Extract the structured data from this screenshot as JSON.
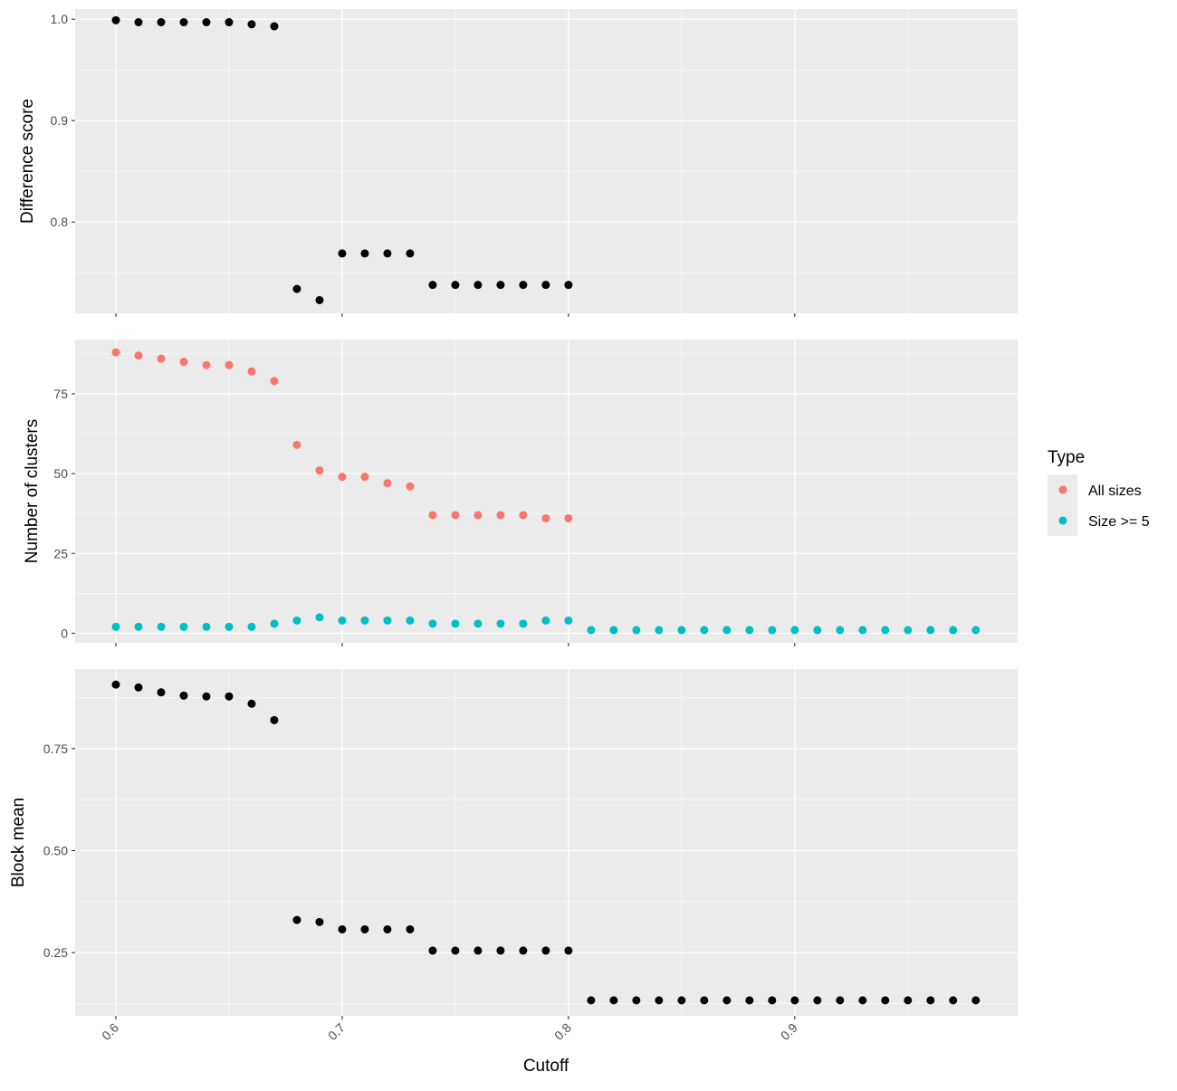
{
  "chart_data": [
    {
      "type": "scatter",
      "ylabel": "Difference score",
      "ylim": [
        0.71,
        1.01
      ],
      "yticks": [
        "0.8",
        "0.9",
        "1.0"
      ],
      "ytick_values": [
        0.8,
        0.9,
        1.0
      ],
      "x": [
        0.6,
        0.61,
        0.62,
        0.63,
        0.64,
        0.65,
        0.66,
        0.67,
        0.68,
        0.69,
        0.7,
        0.71,
        0.72,
        0.73,
        0.74,
        0.75,
        0.76,
        0.77,
        0.78,
        0.79,
        0.8
      ],
      "series": [
        {
          "color": "#000000",
          "values": [
            0.999,
            0.997,
            0.997,
            0.997,
            0.997,
            0.997,
            0.995,
            0.993,
            0.734,
            0.723,
            0.769,
            0.769,
            0.769,
            0.769,
            0.738,
            0.738,
            0.738,
            0.738,
            0.738,
            0.738,
            0.738
          ]
        }
      ]
    },
    {
      "type": "scatter",
      "ylabel": "Number of clusters",
      "ylim": [
        -3,
        92
      ],
      "yticks": [
        "0",
        "25",
        "50",
        "75"
      ],
      "ytick_values": [
        0,
        25,
        50,
        75
      ],
      "legend": {
        "title": "Type",
        "position": "right",
        "entries": [
          "All sizes",
          "Size >= 5"
        ]
      },
      "series": [
        {
          "name": "All sizes",
          "color": "#F8766D",
          "x": [
            0.6,
            0.61,
            0.62,
            0.63,
            0.64,
            0.65,
            0.66,
            0.67,
            0.68,
            0.69,
            0.7,
            0.71,
            0.72,
            0.73,
            0.74,
            0.75,
            0.76,
            0.77,
            0.78,
            0.79,
            0.8
          ],
          "values": [
            88,
            87,
            86,
            85,
            84,
            84,
            82,
            79,
            59,
            51,
            49,
            49,
            47,
            46,
            37,
            37,
            37,
            37,
            37,
            36,
            36
          ]
        },
        {
          "name": "Size >= 5",
          "color": "#00BFC4",
          "x": [
            0.6,
            0.61,
            0.62,
            0.63,
            0.64,
            0.65,
            0.66,
            0.67,
            0.68,
            0.69,
            0.7,
            0.71,
            0.72,
            0.73,
            0.74,
            0.75,
            0.76,
            0.77,
            0.78,
            0.79,
            0.8,
            0.81,
            0.82,
            0.83,
            0.84,
            0.85,
            0.86,
            0.87,
            0.88,
            0.89,
            0.9,
            0.91,
            0.92,
            0.93,
            0.94,
            0.95,
            0.96,
            0.97,
            0.98
          ],
          "values": [
            2,
            2,
            2,
            2,
            2,
            2,
            2,
            3,
            4,
            5,
            4,
            4,
            4,
            4,
            3,
            3,
            3,
            3,
            3,
            4,
            4,
            1,
            1,
            1,
            1,
            1,
            1,
            1,
            1,
            1,
            1,
            1,
            1,
            1,
            1,
            1,
            1,
            1,
            1
          ]
        }
      ]
    },
    {
      "type": "scatter",
      "xlabel": "Cutoff",
      "ylabel": "Block mean",
      "ylim": [
        0.095,
        0.945
      ],
      "yticks": [
        "0.25",
        "0.50",
        "0.75"
      ],
      "ytick_values": [
        0.25,
        0.5,
        0.75
      ],
      "xlim": [
        0.582,
        0.9985
      ],
      "xticks": [
        "0.6",
        "0.7",
        "0.8",
        "0.9"
      ],
      "xtick_values": [
        0.6,
        0.7,
        0.8,
        0.9
      ],
      "x": [
        0.6,
        0.61,
        0.62,
        0.63,
        0.64,
        0.65,
        0.66,
        0.67,
        0.68,
        0.69,
        0.7,
        0.71,
        0.72,
        0.73,
        0.74,
        0.75,
        0.76,
        0.77,
        0.78,
        0.79,
        0.8,
        0.81,
        0.82,
        0.83,
        0.84,
        0.85,
        0.86,
        0.87,
        0.88,
        0.89,
        0.9,
        0.91,
        0.92,
        0.93,
        0.94,
        0.95,
        0.96,
        0.97,
        0.98
      ],
      "series": [
        {
          "color": "#000000",
          "values": [
            0.907,
            0.9,
            0.888,
            0.88,
            0.878,
            0.878,
            0.86,
            0.82,
            0.33,
            0.325,
            0.307,
            0.307,
            0.307,
            0.307,
            0.255,
            0.255,
            0.255,
            0.255,
            0.255,
            0.255,
            0.255,
            0.133,
            0.133,
            0.133,
            0.133,
            0.133,
            0.133,
            0.133,
            0.133,
            0.133,
            0.133,
            0.133,
            0.133,
            0.133,
            0.133,
            0.133,
            0.133,
            0.133,
            0.133
          ]
        }
      ]
    }
  ]
}
